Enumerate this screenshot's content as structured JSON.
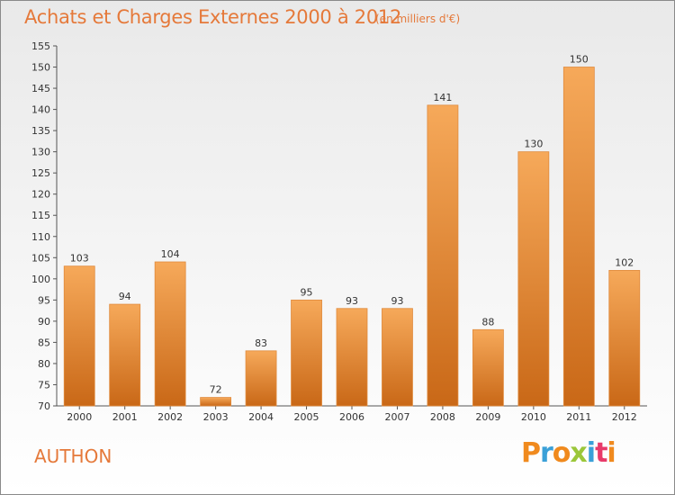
{
  "header": {
    "title": "Achats et Charges Externes 2000 à 2012",
    "subtitle": "(en milliers d'€)"
  },
  "footer": {
    "commune": "AUTHON",
    "logo_text": "Proxiti"
  },
  "colors": {
    "accent": "#e5793a",
    "bar_top": "#f6a95a",
    "bar_bottom": "#c96817",
    "logo": [
      "#f08a1e",
      "#3aa0d8",
      "#f08a1e",
      "#9bc73a",
      "#3aa0d8",
      "#e83a6a",
      "#f08a1e"
    ]
  },
  "chart_data": {
    "type": "bar",
    "title": "Achats et Charges Externes 2000 à 2012",
    "categories": [
      "2000",
      "2001",
      "2002",
      "2003",
      "2004",
      "2005",
      "2006",
      "2007",
      "2008",
      "2009",
      "2010",
      "2011",
      "2012"
    ],
    "values": [
      103,
      94,
      104,
      72,
      83,
      95,
      93,
      93,
      141,
      88,
      130,
      150,
      102
    ],
    "ylim": [
      70,
      155
    ],
    "yticks": [
      70,
      75,
      80,
      85,
      90,
      95,
      100,
      105,
      110,
      115,
      120,
      125,
      130,
      135,
      140,
      145,
      150,
      155
    ],
    "grid": false,
    "legend": "none"
  }
}
